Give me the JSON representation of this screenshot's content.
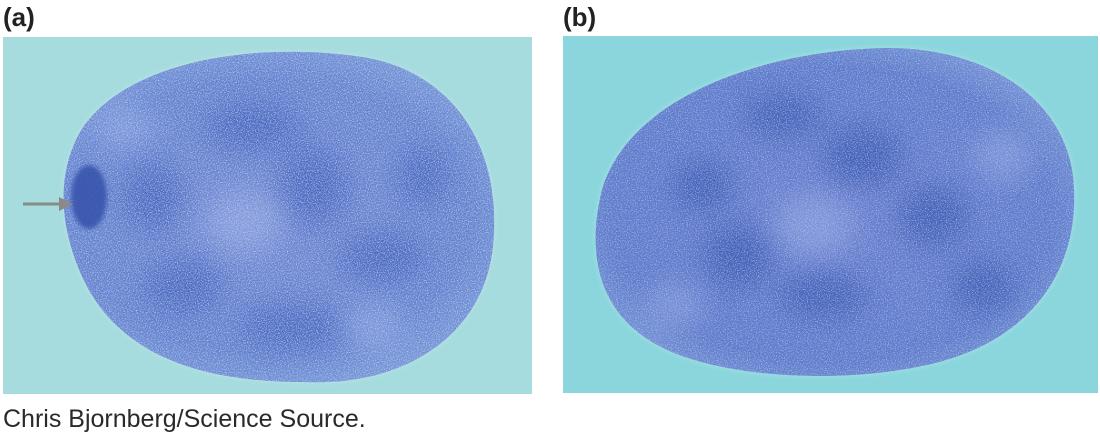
{
  "panels": [
    {
      "label": "(a)"
    },
    {
      "label": "(b)"
    }
  ],
  "credit": "Chris Bjornberg/Science Source.",
  "colors": {
    "background_a": "#a7dcde",
    "background_b": "#8ad6dc",
    "nucleus": "#5f7fd0",
    "nucleus_dark": "#3a5bb3",
    "arrow": "#8a8a8a"
  }
}
